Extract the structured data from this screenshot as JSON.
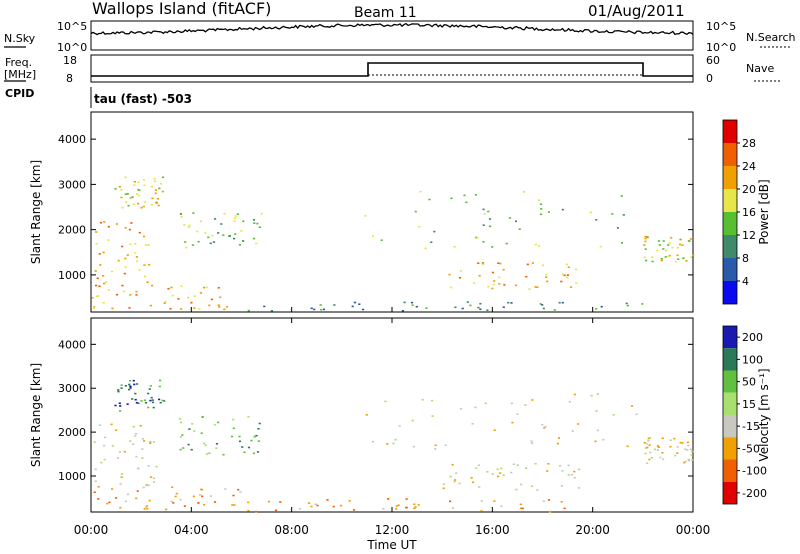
{
  "header": {
    "station": "Wallops Island (fitACF)",
    "beam": "Beam 11",
    "date": "01/Aug/2011"
  },
  "noise_panel": {
    "left_label": "N.Sky",
    "left_top_tick": "10^5",
    "left_bottom_tick": "10^0",
    "right_label": "N.Search",
    "right_top_tick": "10^5",
    "right_bottom_tick": "10^0"
  },
  "freq_panel": {
    "left_label_1": "Freq.",
    "left_label_2": "[MHz]",
    "left_top_tick": "18",
    "left_bottom_tick": "8",
    "right_label": "Nave",
    "right_top_tick": "60",
    "right_bottom_tick": "0",
    "cpid_label": "CPID",
    "program": "tau (fast) -503"
  },
  "chart_data": [
    {
      "type": "heatmap",
      "quantity": "Power",
      "ylabel": "Slant Range [km]",
      "colorbar_label": "Power [dB]",
      "colorbar_ticks": [
        "4",
        "8",
        "12",
        "16",
        "20",
        "24",
        "28"
      ],
      "colors": [
        "#0a0af0",
        "#2a5aaa",
        "#3f8a6a",
        "#58c030",
        "#e6e64a",
        "#f0a000",
        "#f06000",
        "#e00000"
      ],
      "ylim": [
        180,
        4600
      ],
      "yticks": [
        "1000",
        "2000",
        "3000",
        "4000"
      ],
      "regions": [
        {
          "t": [
            0.1,
            2.6
          ],
          "r": [
            700,
            2200
          ],
          "level": 5
        },
        {
          "t": [
            0.9,
            2.9
          ],
          "r": [
            2500,
            3200
          ],
          "level": 4
        },
        {
          "t": [
            3.5,
            6.8
          ],
          "r": [
            1500,
            2400
          ],
          "level": 3
        },
        {
          "t": [
            0.0,
            6.0
          ],
          "r": [
            250,
            800
          ],
          "level": 5
        },
        {
          "t": [
            6.0,
            22.0
          ],
          "r": [
            220,
            420
          ],
          "level": 2
        },
        {
          "t": [
            10.8,
            21.8
          ],
          "r": [
            1600,
            2900
          ],
          "level": 3
        },
        {
          "t": [
            14.0,
            19.5
          ],
          "r": [
            700,
            1300
          ],
          "level": 5
        },
        {
          "t": [
            22.0,
            24.0
          ],
          "r": [
            1300,
            1900
          ],
          "level": 4
        }
      ]
    },
    {
      "type": "heatmap",
      "quantity": "Velocity",
      "ylabel": "Slant Range [km]",
      "xlabel": "Time UT",
      "colorbar_label": "Velocity [m s⁻¹]",
      "colorbar_ticks": [
        "200",
        "100",
        "50",
        "15",
        "-15",
        "-50",
        "-100",
        "-200"
      ],
      "colors": [
        "#1a1ab0",
        "#2a7a5a",
        "#60c040",
        "#a8e070",
        "#c8c8c0",
        "#f0a000",
        "#f06000",
        "#e00000"
      ],
      "ylim": [
        180,
        4600
      ],
      "yticks": [
        "1000",
        "2000",
        "3000",
        "4000"
      ],
      "xticks": [
        "00:00",
        "04:00",
        "08:00",
        "12:00",
        "16:00",
        "20:00",
        "00:00"
      ],
      "regions": [
        {
          "t": [
            0.1,
            2.6
          ],
          "r": [
            700,
            2200
          ],
          "level": 4
        },
        {
          "t": [
            0.9,
            2.9
          ],
          "r": [
            2500,
            3200
          ],
          "level": 1
        },
        {
          "t": [
            3.5,
            6.8
          ],
          "r": [
            1500,
            2400
          ],
          "level": 2
        },
        {
          "t": [
            0.0,
            6.0
          ],
          "r": [
            250,
            800
          ],
          "level": 5
        },
        {
          "t": [
            6.0,
            19.0
          ],
          "r": [
            200,
            500
          ],
          "level": 5
        },
        {
          "t": [
            10.8,
            21.8
          ],
          "r": [
            1600,
            2900
          ],
          "level": 4
        },
        {
          "t": [
            14.0,
            19.5
          ],
          "r": [
            700,
            1300
          ],
          "level": 4
        },
        {
          "t": [
            22.0,
            24.0
          ],
          "r": [
            1300,
            1900
          ],
          "level": 4
        }
      ]
    }
  ]
}
